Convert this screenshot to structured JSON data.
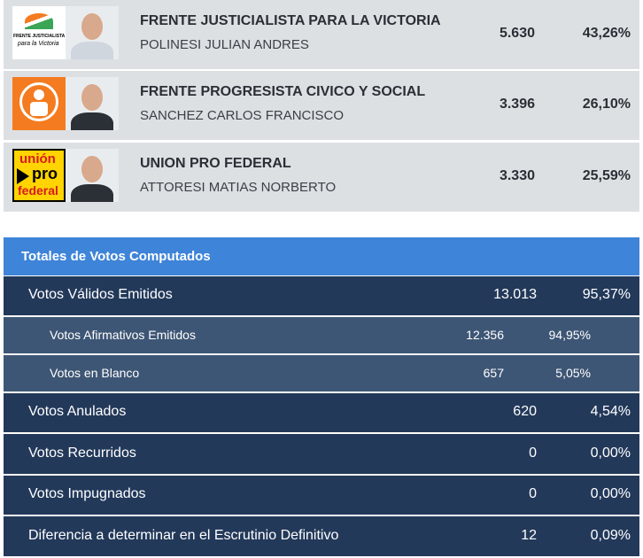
{
  "results": [
    {
      "party": "FRENTE JUSTICIALISTA PARA LA VICTORIA",
      "candidate": "POLINESI JULIAN ANDRES",
      "votes": "5.630",
      "percent": "43,26%",
      "logo_text": [
        "FRENTE JUSTICIALISTA",
        "para la Victoria"
      ]
    },
    {
      "party": "FRENTE PROGRESISTA CIVICO Y SOCIAL",
      "candidate": "SANCHEZ CARLOS FRANCISCO",
      "votes": "3.396",
      "percent": "26,10%",
      "logo_text": []
    },
    {
      "party": "UNION PRO FEDERAL",
      "candidate": "ATTORESI MATIAS NORBERTO",
      "votes": "3.330",
      "percent": "25,59%",
      "logo_text": [
        "unión",
        "pro",
        "federal"
      ]
    }
  ],
  "totals": {
    "title": "Totales de Votos Computados",
    "rows": [
      {
        "label": "Votos Válidos Emitidos",
        "votes": "13.013",
        "percent": "95,37%",
        "indent": false
      },
      {
        "label": "Votos Afirmativos Emitidos",
        "votes": "12.356",
        "percent": "94,95%",
        "indent": true
      },
      {
        "label": "Votos en Blanco",
        "votes": "657",
        "percent": "5,05%",
        "indent": true
      },
      {
        "label": "Votos Anulados",
        "votes": "620",
        "percent": "4,54%",
        "indent": false
      },
      {
        "label": "Votos Recurridos",
        "votes": "0",
        "percent": "0,00%",
        "indent": false
      },
      {
        "label": "Votos Impugnados",
        "votes": "0",
        "percent": "0,00%",
        "indent": false
      },
      {
        "label": "Diferencia a determinar en el Escrutinio Definitivo",
        "votes": "12",
        "percent": "0,09%",
        "indent": false
      }
    ]
  }
}
